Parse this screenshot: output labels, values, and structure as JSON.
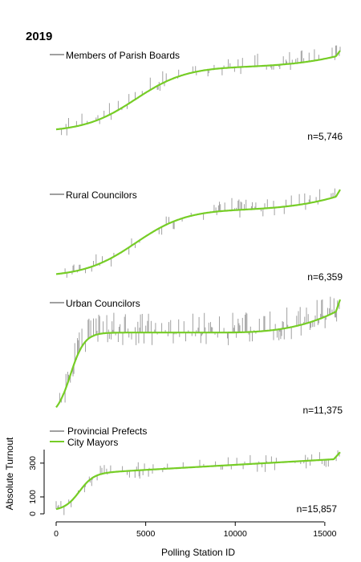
{
  "figure_title": "2019",
  "colors": {
    "muted": "#a0a0a0",
    "accent": "#76cd26",
    "axis": "#000000"
  },
  "chart_data": [
    {
      "type": "line",
      "series": [
        {
          "name": "Members of Parish Boards",
          "color": "#a0a0a0"
        }
      ],
      "annotation": "n=5,746",
      "shape": {
        "start": 0.05,
        "end": 1.0,
        "mid": 0.82,
        "k_ramp": 5,
        "x_ramp": 0.28,
        "w_ramp": 0.09,
        "noise": 0.12,
        "spike_rate": 0.06
      }
    },
    {
      "type": "line",
      "series": [
        {
          "name": "Rural Councilors",
          "color": "#a0a0a0"
        }
      ],
      "annotation": "n=6,359",
      "shape": {
        "start": 0.0,
        "end": 1.0,
        "mid": 0.78,
        "k_ramp": 5,
        "x_ramp": 0.28,
        "w_ramp": 0.09,
        "noise": 0.12,
        "spike_rate": 0.05
      }
    },
    {
      "type": "line",
      "series": [
        {
          "name": "Urban Councilors",
          "color": "#a0a0a0"
        }
      ],
      "annotation": "n=11,375",
      "shape": {
        "start": 0.0,
        "end": 1.0,
        "mid": 0.72,
        "k_ramp": 5,
        "x_ramp": 0.05,
        "w_ramp": 0.025,
        "noise": 0.15,
        "spike_rate": 0.12
      }
    },
    {
      "type": "line",
      "x_label": "Polling Station ID",
      "y_label": "Absolute Turnout",
      "x_ticks": [
        0,
        5000,
        10000,
        15000
      ],
      "x_range": [
        0,
        15857
      ],
      "y_ticks": [
        0,
        100,
        300
      ],
      "y_range": [
        0,
        380
      ],
      "series": [
        {
          "name": "Provincial Prefects",
          "color": "#a0a0a0"
        },
        {
          "name": "City Mayors",
          "color": "#76cd26"
        }
      ],
      "annotation": "n=15,857",
      "shape": {
        "start": 20,
        "end": 370,
        "mid": 270,
        "k_ramp": 5,
        "x_ramp": 1300,
        "w_ramp": 400
      }
    }
  ]
}
